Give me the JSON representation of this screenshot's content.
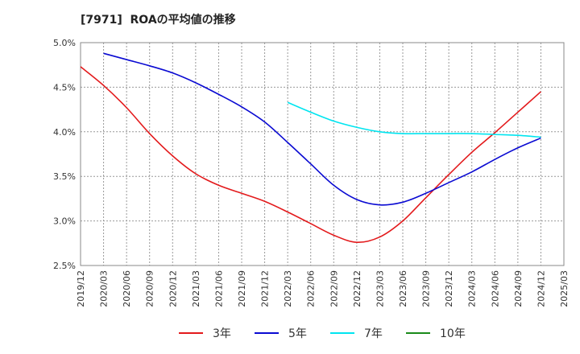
{
  "chart_data": {
    "type": "line",
    "title": "[7971]  ROAの平均値の推移",
    "xlabel": "",
    "ylabel": "",
    "ylim": [
      2.5,
      5.0
    ],
    "y_ticks": [
      "2.5%",
      "3.0%",
      "3.5%",
      "4.0%",
      "4.5%",
      "5.0%"
    ],
    "y_tick_values": [
      2.5,
      3.0,
      3.5,
      4.0,
      4.5,
      5.0
    ],
    "x": [
      "2019/12",
      "2020/03",
      "2020/06",
      "2020/09",
      "2020/12",
      "2021/03",
      "2021/06",
      "2021/09",
      "2021/12",
      "2022/03",
      "2022/06",
      "2022/09",
      "2022/12",
      "2023/03",
      "2023/06",
      "2023/09",
      "2023/12",
      "2024/03",
      "2024/06",
      "2024/09",
      "2024/12",
      "2025/03"
    ],
    "grid": "both-dotted",
    "legend_position": "bottom",
    "series": [
      {
        "name": "3年",
        "color": "#e31a1c",
        "values": [
          4.73,
          4.52,
          4.27,
          3.98,
          3.73,
          3.53,
          3.4,
          3.31,
          3.22,
          3.1,
          2.97,
          2.84,
          2.76,
          2.82,
          3.0,
          3.26,
          3.52,
          3.77,
          3.99,
          4.22,
          4.45,
          null
        ]
      },
      {
        "name": "5年",
        "color": "#0a0ad2",
        "values": [
          null,
          4.88,
          4.81,
          4.74,
          4.66,
          4.55,
          4.42,
          4.28,
          4.11,
          3.88,
          3.64,
          3.4,
          3.24,
          3.18,
          3.21,
          3.31,
          3.43,
          3.55,
          3.69,
          3.82,
          3.93,
          null
        ]
      },
      {
        "name": "7年",
        "color": "#00e5f0",
        "values": [
          null,
          null,
          null,
          null,
          null,
          null,
          null,
          null,
          null,
          4.33,
          4.22,
          4.12,
          4.05,
          4.0,
          3.98,
          3.98,
          3.98,
          3.98,
          3.97,
          3.96,
          3.94,
          null
        ]
      },
      {
        "name": "10年",
        "color": "#1a8a1a",
        "values": [
          null,
          null,
          null,
          null,
          null,
          null,
          null,
          null,
          null,
          null,
          null,
          null,
          null,
          null,
          null,
          null,
          null,
          null,
          null,
          null,
          null,
          null
        ]
      }
    ]
  }
}
